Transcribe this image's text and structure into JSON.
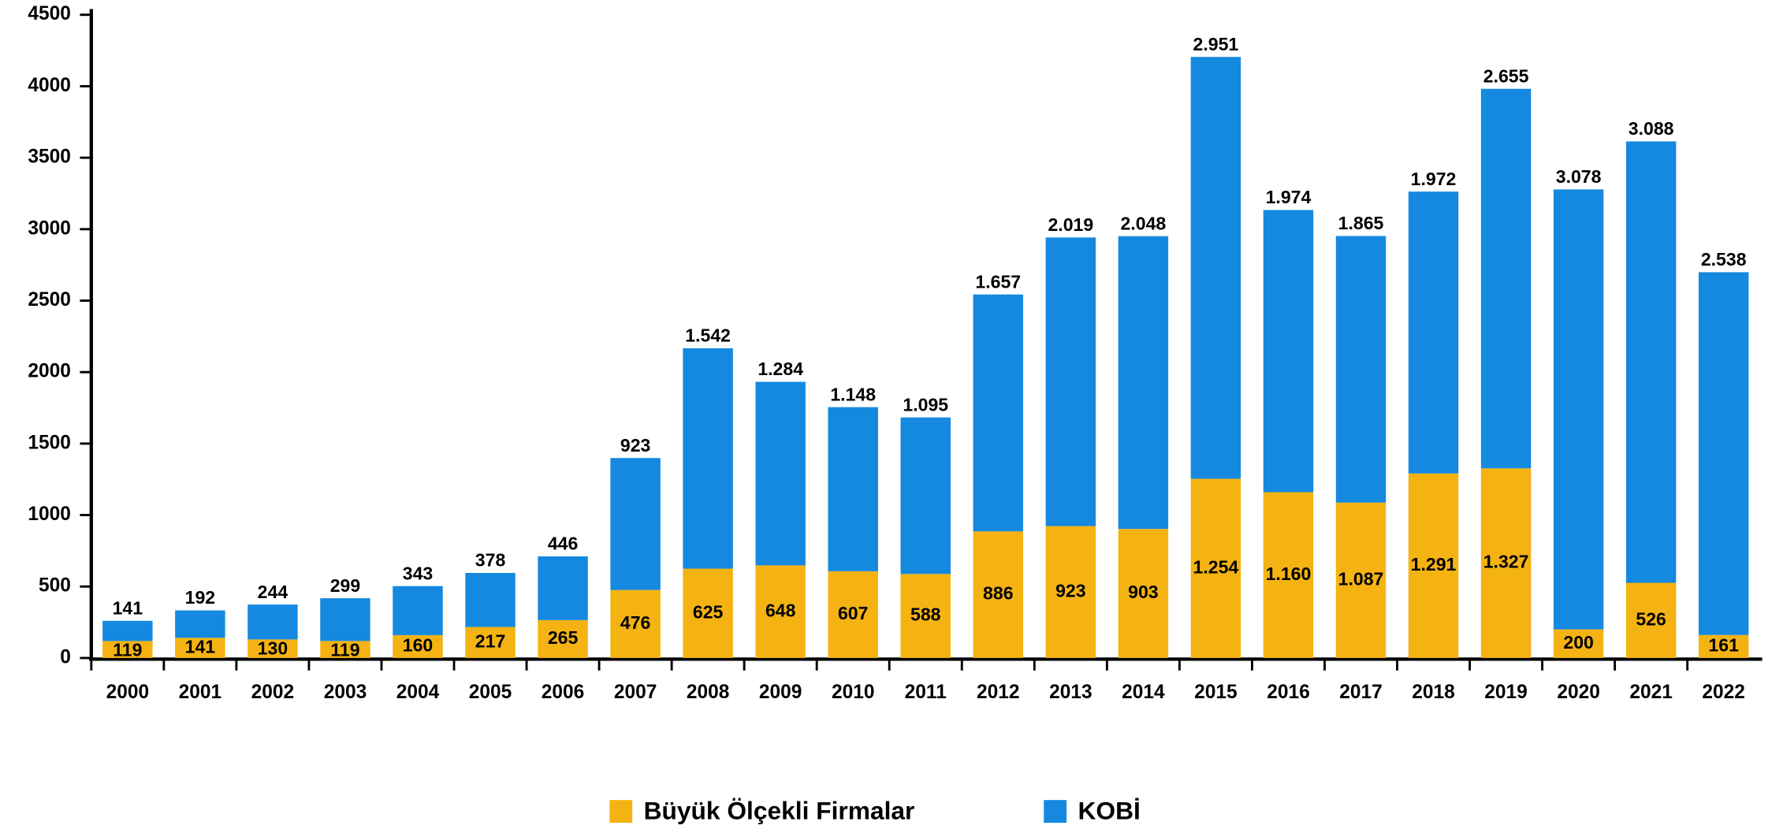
{
  "chart_data": {
    "type": "stacked_bar",
    "categories": [
      "2000",
      "2001",
      "2002",
      "2003",
      "2004",
      "2005",
      "2006",
      "2007",
      "2008",
      "2009",
      "2010",
      "2011",
      "2012",
      "2013",
      "2014",
      "2015",
      "2016",
      "2017",
      "2018",
      "2019",
      "2020",
      "2021",
      "2022"
    ],
    "series": [
      {
        "name": "Büyük Ölçekli Firmalar",
        "color": "#f4b312",
        "values": [
          119,
          141,
          130,
          119,
          160,
          217,
          265,
          476,
          625,
          648,
          607,
          588,
          886,
          923,
          903,
          1254,
          1160,
          1087,
          1291,
          1327,
          200,
          526,
          161
        ],
        "value_labels": [
          "119",
          "141",
          "130",
          "119",
          "160",
          "217",
          "265",
          "476",
          "625",
          "648",
          "607",
          "588",
          "886",
          "923",
          "903",
          "1.254",
          "1.160",
          "1.087",
          "1.291",
          "1.327",
          "200",
          "526",
          "161"
        ]
      },
      {
        "name": "KOBİ",
        "color": "#1589e0",
        "values": [
          141,
          192,
          244,
          299,
          343,
          378,
          446,
          923,
          1542,
          1284,
          1148,
          1095,
          1657,
          2019,
          2048,
          2951,
          1974,
          1865,
          1972,
          2655,
          3078,
          3088,
          2538
        ],
        "value_labels": [
          "141",
          "192",
          "244",
          "299",
          "343",
          "378",
          "446",
          "923",
          "1.542",
          "1.284",
          "1.148",
          "1.095",
          "1.657",
          "2.019",
          "2.048",
          "2.951",
          "1.974",
          "1.865",
          "1.972",
          "2.655",
          "3.078",
          "3.088",
          "2.538"
        ]
      }
    ],
    "ylim": [
      0,
      4500
    ],
    "yticks": [
      0,
      500,
      1000,
      1500,
      2000,
      2500,
      3000,
      3500,
      4000,
      4500
    ],
    "grid": false,
    "legend": "bottom"
  }
}
